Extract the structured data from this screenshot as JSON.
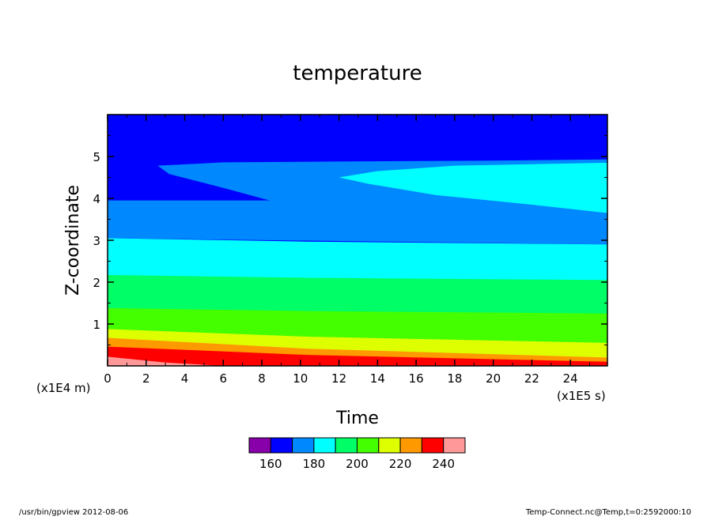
{
  "chart_data": {
    "type": "heatmap",
    "title": "temperature",
    "xlabel": "Time",
    "ylabel": "Z-coordinate",
    "x_unit_label": "(x1E5 s)",
    "y_unit_label": "(x1E4 m)",
    "xlim": [
      0,
      25.92
    ],
    "ylim": [
      0,
      6
    ],
    "x_ticks": [
      0,
      2,
      4,
      6,
      8,
      10,
      12,
      14,
      16,
      18,
      20,
      22,
      24
    ],
    "x_tick_labels": [
      "0",
      "2",
      "4",
      "6",
      "8",
      "10",
      "12",
      "14",
      "16",
      "18",
      "20",
      "22",
      "24"
    ],
    "y_ticks": [
      1,
      2,
      3,
      4,
      5
    ],
    "y_tick_labels": [
      "1",
      "2",
      "3",
      "4",
      "5"
    ],
    "colorbar": {
      "levels": [
        150,
        160,
        170,
        180,
        190,
        200,
        210,
        220,
        230,
        240,
        250
      ],
      "colors": [
        "#8800aa",
        "#0000ff",
        "#0088ff",
        "#00ffff",
        "#00ff66",
        "#44ff00",
        "#ddff00",
        "#ff9900",
        "#ff0000",
        "#ff9999"
      ],
      "tick_values": [
        160,
        180,
        200,
        220,
        240
      ],
      "tick_labels": [
        "160",
        "180",
        "200",
        "220",
        "240"
      ]
    },
    "bands": [
      {
        "level": 230,
        "color": "#ff0000",
        "z_at_t0": 0.46,
        "z_at_tend": 0.1
      },
      {
        "level": 220,
        "color": "#ff9900",
        "z_at_t0": 0.67,
        "z_at_tend": 0.2
      },
      {
        "level": 210,
        "color": "#ddff00",
        "z_at_t0": 0.88,
        "z_at_tend": 0.55
      },
      {
        "level": 200,
        "color": "#44ff00",
        "z_at_t0": 1.38,
        "z_at_tend": 1.25
      },
      {
        "level": 190,
        "color": "#00ff66",
        "z_at_t0": 2.17,
        "z_at_tend": 2.05
      },
      {
        "level": 180,
        "color": "#00ffff",
        "z_at_t0": 3.05,
        "z_at_tend": 2.9
      }
    ],
    "features": [
      {
        "color": "#0088ff",
        "description": "blue wedge from t=2.6 to 8.4, z 3.95-4.78"
      },
      {
        "color": "#00ffff",
        "description": "cyan tongue from t=12 to end, z 3.65-4.85"
      }
    ]
  },
  "footer": {
    "left": "/usr/bin/gpview  2012-08-06",
    "right": "Temp-Connect.nc@Temp,t=0:2592000:10"
  }
}
